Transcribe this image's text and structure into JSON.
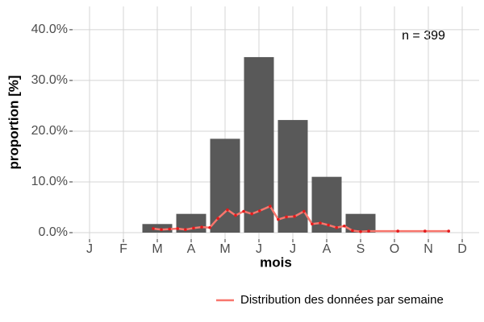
{
  "chart_data": [
    {
      "type": "bar",
      "categories": [
        "J",
        "F",
        "M",
        "A",
        "M",
        "J",
        "J",
        "A",
        "S",
        "O",
        "N",
        "D"
      ],
      "values": [
        0,
        0,
        1.7,
        3.7,
        18.5,
        34.6,
        22.2,
        11.0,
        3.7,
        0,
        0,
        0
      ],
      "color": "#595959",
      "ylim": [
        0,
        43
      ],
      "yticks": [
        {
          "value": 0,
          "label": "0.0%"
        },
        {
          "value": 10,
          "label": "10.0%"
        },
        {
          "value": 20,
          "label": "20.0%"
        },
        {
          "value": 30,
          "label": "30.0%"
        },
        {
          "value": 40,
          "label": "40.0%"
        }
      ],
      "xlabel": "mois",
      "ylabel": "proportion [%]",
      "annotation": "n = 399",
      "grid": true
    },
    {
      "type": "line",
      "series": [
        {
          "name": "Distribution des données par semaine",
          "color": "#f8766d",
          "x": [
            2.88,
            3.12,
            3.36,
            3.6,
            3.83,
            4.07,
            4.31,
            4.55,
            4.79,
            5.07,
            5.31,
            5.55,
            5.79,
            6.02,
            6.33,
            6.57,
            6.81,
            7.05,
            7.33,
            7.57,
            7.81,
            8.05,
            8.29,
            8.52,
            8.76,
            9.0,
            9.24,
            10.1,
            10.9,
            11.6
          ],
          "values": [
            0.8,
            0.6,
            0.7,
            0.8,
            0.6,
            0.9,
            1.1,
            1.0,
            2.8,
            4.5,
            3.4,
            4.2,
            3.7,
            4.3,
            5.2,
            2.6,
            3.1,
            3.2,
            4.2,
            1.7,
            1.9,
            1.5,
            1.0,
            1.3,
            0.4,
            0.2,
            0.3,
            0.3,
            0.3,
            0.3
          ]
        }
      ],
      "legend": "bottom"
    }
  ]
}
